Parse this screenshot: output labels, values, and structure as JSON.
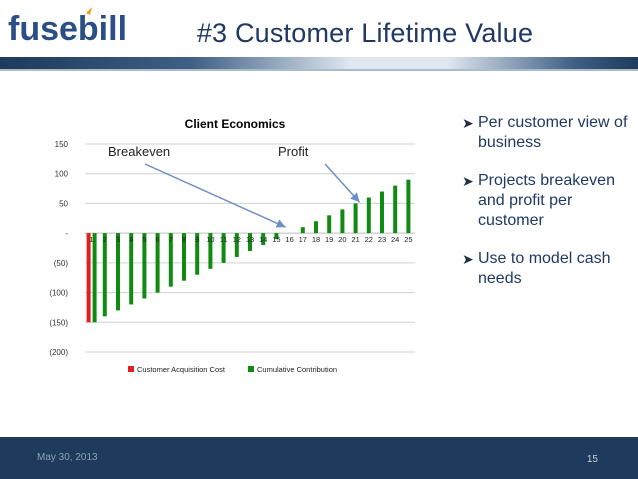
{
  "logo": {
    "text": "fusebill"
  },
  "slide": {
    "title": "#3 Customer Lifetime Value",
    "date": "May 30, 2013",
    "page_number": "15"
  },
  "bullets": [
    {
      "text": "Per customer view of business"
    },
    {
      "text": "Projects breakeven and profit per customer"
    },
    {
      "text": "Use to model cash needs"
    }
  ],
  "annotations": {
    "breakeven": "Breakeven",
    "profit": "Profit"
  },
  "chart_data": {
    "type": "bar",
    "title": "Client Economics",
    "categories": [
      "1",
      "2",
      "3",
      "4",
      "5",
      "6",
      "7",
      "8",
      "9",
      "10",
      "11",
      "12",
      "13",
      "14",
      "15",
      "16",
      "17",
      "18",
      "19",
      "20",
      "21",
      "22",
      "23",
      "24",
      "25"
    ],
    "ylim": [
      -200,
      150
    ],
    "yticks": [
      150,
      100,
      50,
      0,
      -50,
      -100,
      -150,
      -200
    ],
    "ytick_labels": [
      "150",
      "100",
      "50",
      "-",
      "(50)",
      "(100)",
      "(150)",
      "(200)"
    ],
    "legend_position": "bottom",
    "grid": true,
    "series": [
      {
        "name": "Customer Acquisition Cost",
        "color": "#e02020",
        "values": [
          -150,
          0,
          0,
          0,
          0,
          0,
          0,
          0,
          0,
          0,
          0,
          0,
          0,
          0,
          0,
          0,
          0,
          0,
          0,
          0,
          0,
          0,
          0,
          0,
          0
        ]
      },
      {
        "name": "Cumulative Contribution",
        "color": "#108a10",
        "values": [
          -150,
          -140,
          -130,
          -120,
          -110,
          -100,
          -90,
          -80,
          -70,
          -60,
          -50,
          -40,
          -30,
          -20,
          -10,
          0,
          10,
          20,
          30,
          40,
          50,
          60,
          70,
          80,
          90
        ]
      }
    ]
  }
}
